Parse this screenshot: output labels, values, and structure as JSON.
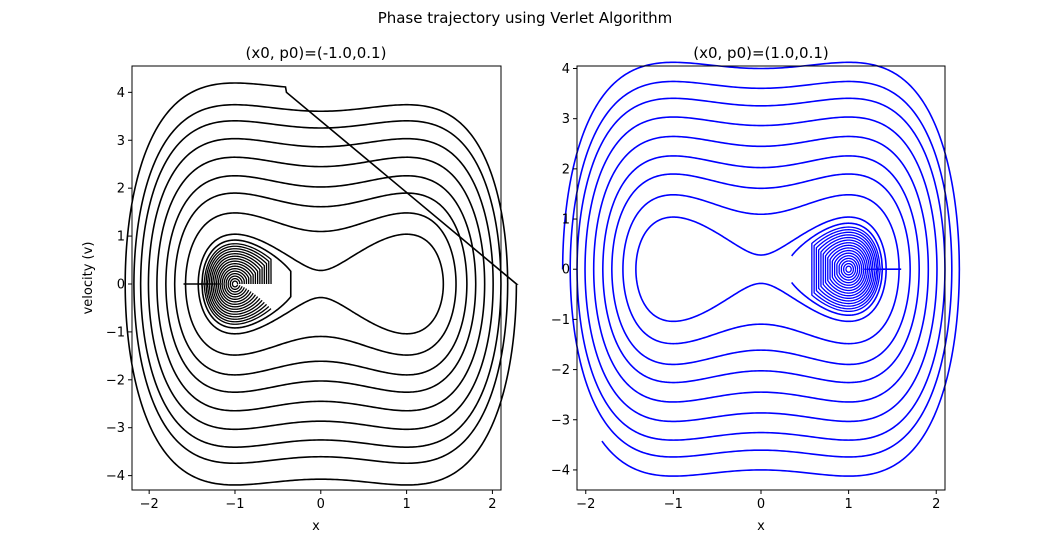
{
  "figure": {
    "suptitle": "Phase trajectory using Verlet Algorithm"
  },
  "chart_data": [
    {
      "type": "line",
      "title": "(x0, p0)=(-1.0,0.1)",
      "xlabel": "x",
      "ylabel": "velocity (v)",
      "xlim": [
        -2.2,
        2.1
      ],
      "ylim": [
        -4.3,
        4.55
      ],
      "xticks": [
        -2,
        -1,
        0,
        1,
        2
      ],
      "yticks": [
        -4,
        -3,
        -2,
        -1,
        0,
        1,
        2,
        3,
        4
      ],
      "grid": false,
      "color": "#000000",
      "series": [
        {
          "description": "trajectory spiralling outward from well at x=-1 (inner loops), then crossing the barrier at x=0",
          "center": -1.0,
          "inner_loops": {
            "count": 16,
            "r_start": 0.03,
            "r_end": 0.42
          },
          "outer_energies": [
            0.04,
            0.6,
            1.3,
            2.05,
            3.0,
            4.1,
            5.3,
            6.5,
            8.3
          ],
          "start": [
            -1.0,
            0.1
          ],
          "end": [
            -0.4,
            4.0
          ],
          "end_side": "top"
        }
      ]
    },
    {
      "type": "line",
      "title": "(x0, p0)=(1.0,0.1)",
      "xlabel": "x",
      "ylabel": "",
      "xlim": [
        -2.1,
        2.1
      ],
      "ylim": [
        -4.4,
        4.05
      ],
      "xticks": [
        -2,
        -1,
        0,
        1,
        2
      ],
      "yticks": [
        -4,
        -3,
        -2,
        -1,
        0,
        1,
        2,
        3,
        4
      ],
      "grid": false,
      "color": "#0000ff",
      "series": [
        {
          "description": "trajectory spiralling outward from well at x=1 (inner loops), then crossing the barrier at x=0",
          "center": 1.0,
          "inner_loops": {
            "count": 16,
            "r_start": 0.03,
            "r_end": 0.42
          },
          "outer_energies": [
            0.04,
            0.6,
            1.3,
            2.05,
            3.0,
            4.1,
            5.3,
            6.5,
            8.0
          ],
          "start": [
            1.0,
            0.1
          ],
          "end": [
            -1.83,
            -2.45
          ],
          "end_side": "bottom"
        }
      ]
    }
  ]
}
